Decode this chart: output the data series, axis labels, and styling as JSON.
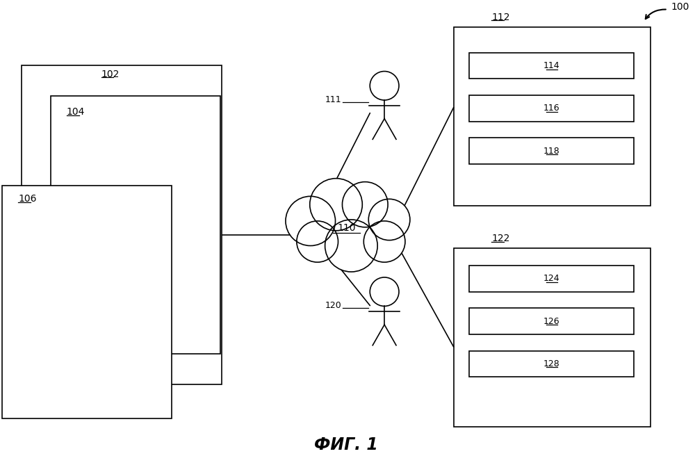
{
  "bg_color": "#ffffff",
  "fig_label": "ФИГ. 1",
  "ref_100": "100",
  "ref_102": "102",
  "ref_104": "104",
  "ref_106": "106",
  "ref_110": "110",
  "ref_111": "111",
  "ref_112": "112",
  "ref_114": "114",
  "ref_116": "116",
  "ref_118": "118",
  "ref_120": "120",
  "ref_122": "122",
  "ref_124": "124",
  "ref_126": "126",
  "ref_128": "128",
  "lw": 1.2,
  "black": "#000000",
  "white": "#ffffff"
}
